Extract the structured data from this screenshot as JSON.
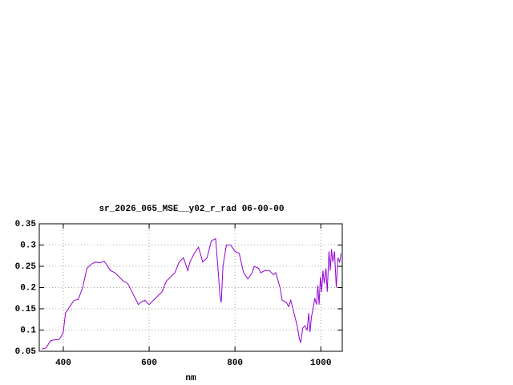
{
  "chart_data": {
    "type": "line",
    "title": "sr_2026_065_MSE__y02_r_rad 06-00-00",
    "x_label": "nm",
    "x": [
      350,
      360,
      370,
      380,
      390,
      395,
      400,
      405,
      415,
      425,
      435,
      445,
      455,
      465,
      475,
      485,
      495,
      500,
      510,
      520,
      530,
      540,
      550,
      560,
      570,
      575,
      580,
      590,
      600,
      610,
      620,
      630,
      640,
      650,
      660,
      670,
      680,
      690,
      695,
      705,
      715,
      725,
      735,
      745,
      755,
      760,
      765,
      768,
      772,
      780,
      790,
      800,
      810,
      820,
      830,
      840,
      845,
      855,
      860,
      870,
      880,
      890,
      895,
      905,
      910,
      920,
      925,
      930,
      940,
      945,
      950,
      953,
      958,
      963,
      968,
      972,
      975,
      978,
      982,
      986,
      990,
      993,
      996,
      999,
      1002,
      1005,
      1008,
      1012,
      1015,
      1019,
      1022,
      1025,
      1028,
      1032,
      1036,
      1040,
      1044,
      1047
    ],
    "series": [
      {
        "color": "#9400d3",
        "values": [
          0.055,
          0.058,
          0.075,
          0.077,
          0.078,
          0.085,
          0.095,
          0.14,
          0.155,
          0.17,
          0.172,
          0.2,
          0.245,
          0.255,
          0.26,
          0.258,
          0.262,
          0.255,
          0.24,
          0.235,
          0.225,
          0.215,
          0.21,
          0.19,
          0.17,
          0.16,
          0.165,
          0.17,
          0.16,
          0.17,
          0.18,
          0.19,
          0.215,
          0.225,
          0.235,
          0.26,
          0.27,
          0.24,
          0.26,
          0.28,
          0.295,
          0.26,
          0.27,
          0.31,
          0.315,
          0.25,
          0.18,
          0.165,
          0.25,
          0.3,
          0.3,
          0.285,
          0.28,
          0.235,
          0.22,
          0.235,
          0.25,
          0.245,
          0.235,
          0.24,
          0.24,
          0.23,
          0.235,
          0.2,
          0.17,
          0.165,
          0.155,
          0.17,
          0.13,
          0.11,
          0.08,
          0.07,
          0.105,
          0.11,
          0.1,
          0.14,
          0.095,
          0.13,
          0.15,
          0.175,
          0.16,
          0.205,
          0.16,
          0.225,
          0.19,
          0.24,
          0.21,
          0.245,
          0.19,
          0.285,
          0.24,
          0.29,
          0.26,
          0.285,
          0.2,
          0.27,
          0.26,
          0.28
        ]
      }
    ],
    "xlim": [
      344,
      1050
    ],
    "xticks": [
      400,
      600,
      800,
      1000
    ],
    "ylim": [
      0.05,
      0.35
    ],
    "yticks": [
      0.05,
      0.1,
      0.15,
      0.2,
      0.25,
      0.3,
      0.35
    ],
    "grid": true
  }
}
